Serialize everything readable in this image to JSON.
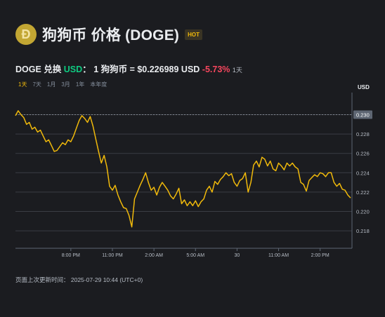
{
  "header": {
    "title": "狗狗币 价格 (DOGE)",
    "hot_badge": "HOT",
    "logo_icon": "dogecoin-logo-icon"
  },
  "price": {
    "pair_prefix": "DOGE 兑换",
    "pair_currency": "USD",
    "pair_colon": "：",
    "conversion": "1 狗狗币 = $0.226989 USD",
    "change": "-5.73%",
    "change_period": "1天"
  },
  "tabs": [
    {
      "label": "1天",
      "active": true
    },
    {
      "label": "7天",
      "active": false
    },
    {
      "label": "1月",
      "active": false
    },
    {
      "label": "3月",
      "active": false
    },
    {
      "label": "1年",
      "active": false
    },
    {
      "label": "本年度",
      "active": false
    }
  ],
  "footer": {
    "updated": "页面上次更新时间：  2025-07-29 10:44 (UTC+0)"
  },
  "colors": {
    "background": "#1b1c20",
    "line": "#f0b90b",
    "grid": "#3a3d44",
    "up": "#0ecb81",
    "down": "#f6465d"
  },
  "chart_data": {
    "type": "line",
    "ylabel": "USD",
    "ylim": [
      0.2162,
      0.2317
    ],
    "y_ticks": [
      "0.230",
      "0.228",
      "0.226",
      "0.224",
      "0.222",
      "0.220",
      "0.218"
    ],
    "y_tick_values": [
      0.23,
      0.228,
      0.226,
      0.224,
      0.222,
      0.22,
      0.218
    ],
    "x_ticks": [
      "8:00 PM",
      "11:00 PM",
      "2:00 AM",
      "5:00 AM",
      "30",
      "11:00 AM",
      "2:00 PM"
    ],
    "x_tick_values": [
      20,
      23,
      26,
      29,
      32,
      35,
      38
    ],
    "xlim": [
      16.0,
      40.3
    ],
    "current_price_label": "0.230",
    "current_price": 0.23,
    "grid": true,
    "series": [
      {
        "values": [
          [
            16.0,
            0.2299
          ],
          [
            16.2,
            0.2304
          ],
          [
            16.4,
            0.23
          ],
          [
            16.6,
            0.2297
          ],
          [
            16.8,
            0.229
          ],
          [
            17.0,
            0.2292
          ],
          [
            17.2,
            0.2285
          ],
          [
            17.4,
            0.2287
          ],
          [
            17.6,
            0.2282
          ],
          [
            17.8,
            0.2284
          ],
          [
            18.0,
            0.2278
          ],
          [
            18.2,
            0.2272
          ],
          [
            18.4,
            0.2274
          ],
          [
            18.6,
            0.2268
          ],
          [
            18.8,
            0.2262
          ],
          [
            19.0,
            0.2263
          ],
          [
            19.2,
            0.2267
          ],
          [
            19.4,
            0.2271
          ],
          [
            19.6,
            0.2269
          ],
          [
            19.8,
            0.2274
          ],
          [
            20.0,
            0.2272
          ],
          [
            20.2,
            0.2278
          ],
          [
            20.4,
            0.2286
          ],
          [
            20.6,
            0.2294
          ],
          [
            20.8,
            0.2299
          ],
          [
            21.0,
            0.2296
          ],
          [
            21.2,
            0.2292
          ],
          [
            21.4,
            0.2298
          ],
          [
            21.6,
            0.2288
          ],
          [
            21.8,
            0.2275
          ],
          [
            22.0,
            0.2262
          ],
          [
            22.2,
            0.225
          ],
          [
            22.4,
            0.2258
          ],
          [
            22.6,
            0.2246
          ],
          [
            22.8,
            0.2226
          ],
          [
            23.0,
            0.2222
          ],
          [
            23.2,
            0.2227
          ],
          [
            23.4,
            0.2217
          ],
          [
            23.6,
            0.221
          ],
          [
            23.8,
            0.2204
          ],
          [
            24.0,
            0.2203
          ],
          [
            24.2,
            0.2196
          ],
          [
            24.4,
            0.2184
          ],
          [
            24.6,
            0.2213
          ],
          [
            24.8,
            0.222
          ],
          [
            25.0,
            0.2227
          ],
          [
            25.2,
            0.2233
          ],
          [
            25.4,
            0.224
          ],
          [
            25.6,
            0.223
          ],
          [
            25.8,
            0.2222
          ],
          [
            26.0,
            0.2225
          ],
          [
            26.2,
            0.2217
          ],
          [
            26.4,
            0.2225
          ],
          [
            26.6,
            0.223
          ],
          [
            26.8,
            0.2226
          ],
          [
            27.0,
            0.2222
          ],
          [
            27.2,
            0.2216
          ],
          [
            27.4,
            0.2213
          ],
          [
            27.6,
            0.2218
          ],
          [
            27.8,
            0.2224
          ],
          [
            28.0,
            0.2208
          ],
          [
            28.2,
            0.2212
          ],
          [
            28.4,
            0.2206
          ],
          [
            28.6,
            0.221
          ],
          [
            28.8,
            0.2206
          ],
          [
            29.0,
            0.2211
          ],
          [
            29.2,
            0.2205
          ],
          [
            29.4,
            0.221
          ],
          [
            29.6,
            0.2213
          ],
          [
            29.8,
            0.2222
          ],
          [
            30.0,
            0.2226
          ],
          [
            30.2,
            0.222
          ],
          [
            30.4,
            0.2231
          ],
          [
            30.6,
            0.2228
          ],
          [
            30.8,
            0.2233
          ],
          [
            31.0,
            0.2236
          ],
          [
            31.2,
            0.224
          ],
          [
            31.4,
            0.2237
          ],
          [
            31.6,
            0.2239
          ],
          [
            31.8,
            0.223
          ],
          [
            32.0,
            0.2226
          ],
          [
            32.2,
            0.2232
          ],
          [
            32.4,
            0.2234
          ],
          [
            32.6,
            0.224
          ],
          [
            32.8,
            0.222
          ],
          [
            33.0,
            0.223
          ],
          [
            33.2,
            0.2248
          ],
          [
            33.4,
            0.2252
          ],
          [
            33.6,
            0.2246
          ],
          [
            33.8,
            0.2256
          ],
          [
            34.0,
            0.2254
          ],
          [
            34.2,
            0.2247
          ],
          [
            34.4,
            0.2252
          ],
          [
            34.6,
            0.2244
          ],
          [
            34.8,
            0.2242
          ],
          [
            35.0,
            0.225
          ],
          [
            35.2,
            0.2247
          ],
          [
            35.4,
            0.2243
          ],
          [
            35.6,
            0.225
          ],
          [
            35.8,
            0.2247
          ],
          [
            36.0,
            0.225
          ],
          [
            36.2,
            0.2246
          ],
          [
            36.4,
            0.2244
          ],
          [
            36.6,
            0.223
          ],
          [
            36.8,
            0.2228
          ],
          [
            37.0,
            0.2221
          ],
          [
            37.2,
            0.2232
          ],
          [
            37.4,
            0.2235
          ],
          [
            37.6,
            0.2238
          ],
          [
            37.8,
            0.2236
          ],
          [
            38.0,
            0.224
          ],
          [
            38.2,
            0.2239
          ],
          [
            38.4,
            0.2236
          ],
          [
            38.6,
            0.224
          ],
          [
            38.8,
            0.224
          ],
          [
            39.0,
            0.223
          ],
          [
            39.2,
            0.2226
          ],
          [
            39.4,
            0.2229
          ],
          [
            39.6,
            0.2223
          ],
          [
            39.8,
            0.2222
          ],
          [
            40.0,
            0.2217
          ],
          [
            40.2,
            0.2214
          ]
        ]
      }
    ]
  }
}
